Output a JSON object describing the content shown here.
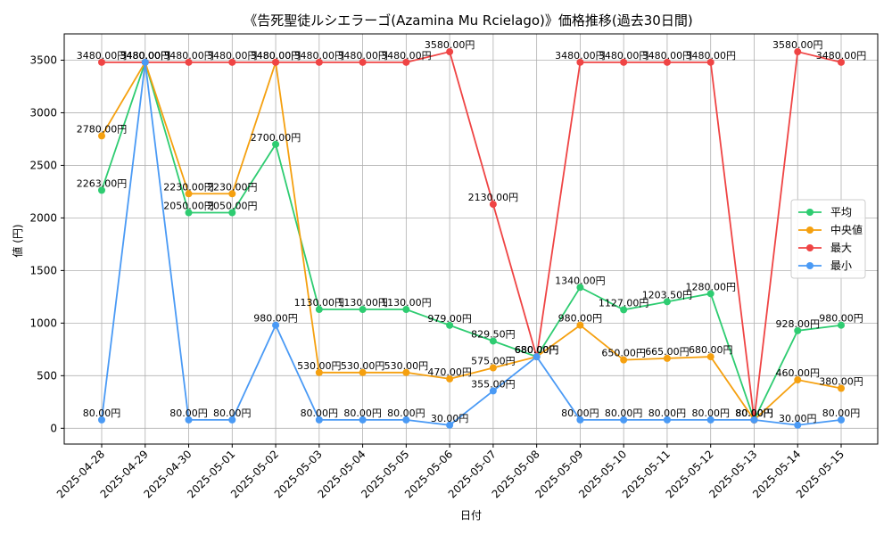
{
  "chart_data": {
    "type": "line",
    "title": "《告死聖徒ルシエラーゴ(Azamina Mu Rcielago)》価格推移(過去30日間)",
    "xlabel": "日付",
    "ylabel": "値 (円)",
    "ylim": [
      -150,
      3750
    ],
    "yticks": [
      0,
      500,
      1000,
      1500,
      2000,
      2500,
      3000,
      3500
    ],
    "grid": true,
    "legend_position": "right",
    "value_suffix": "円",
    "categories": [
      "2025-04-28",
      "2025-04-29",
      "2025-04-30",
      "2025-05-01",
      "2025-05-02",
      "2025-05-03",
      "2025-05-04",
      "2025-05-05",
      "2025-05-06",
      "2025-05-07",
      "2025-05-08",
      "2025-05-09",
      "2025-05-10",
      "2025-05-11",
      "2025-05-12",
      "2025-05-13",
      "2025-05-14",
      "2025-05-15"
    ],
    "series": [
      {
        "name": "平均",
        "color": "#2ecc71",
        "values": [
          2263,
          3480,
          2050,
          2050,
          2700,
          1130,
          1130,
          1130,
          979,
          829.5,
          680,
          1340,
          1127,
          1203.5,
          1280,
          80,
          928,
          980
        ]
      },
      {
        "name": "中央値",
        "color": "#f5a00f",
        "values": [
          2780,
          3480,
          2230,
          2230,
          3480,
          530,
          530,
          530,
          470,
          575,
          680,
          980,
          650,
          665,
          680,
          80,
          460,
          380
        ]
      },
      {
        "name": "最大",
        "color": "#ef4444",
        "values": [
          3480,
          3480,
          3480,
          3480,
          3480,
          3480,
          3480,
          3480,
          3580,
          2130,
          680,
          3480,
          3480,
          3480,
          3480,
          80,
          3580,
          3480
        ]
      },
      {
        "name": "最小",
        "color": "#4a9af5",
        "values": [
          80,
          3480,
          80,
          80,
          980,
          80,
          80,
          80,
          30,
          355,
          680,
          80,
          80,
          80,
          80,
          80,
          30,
          80
        ]
      }
    ]
  }
}
